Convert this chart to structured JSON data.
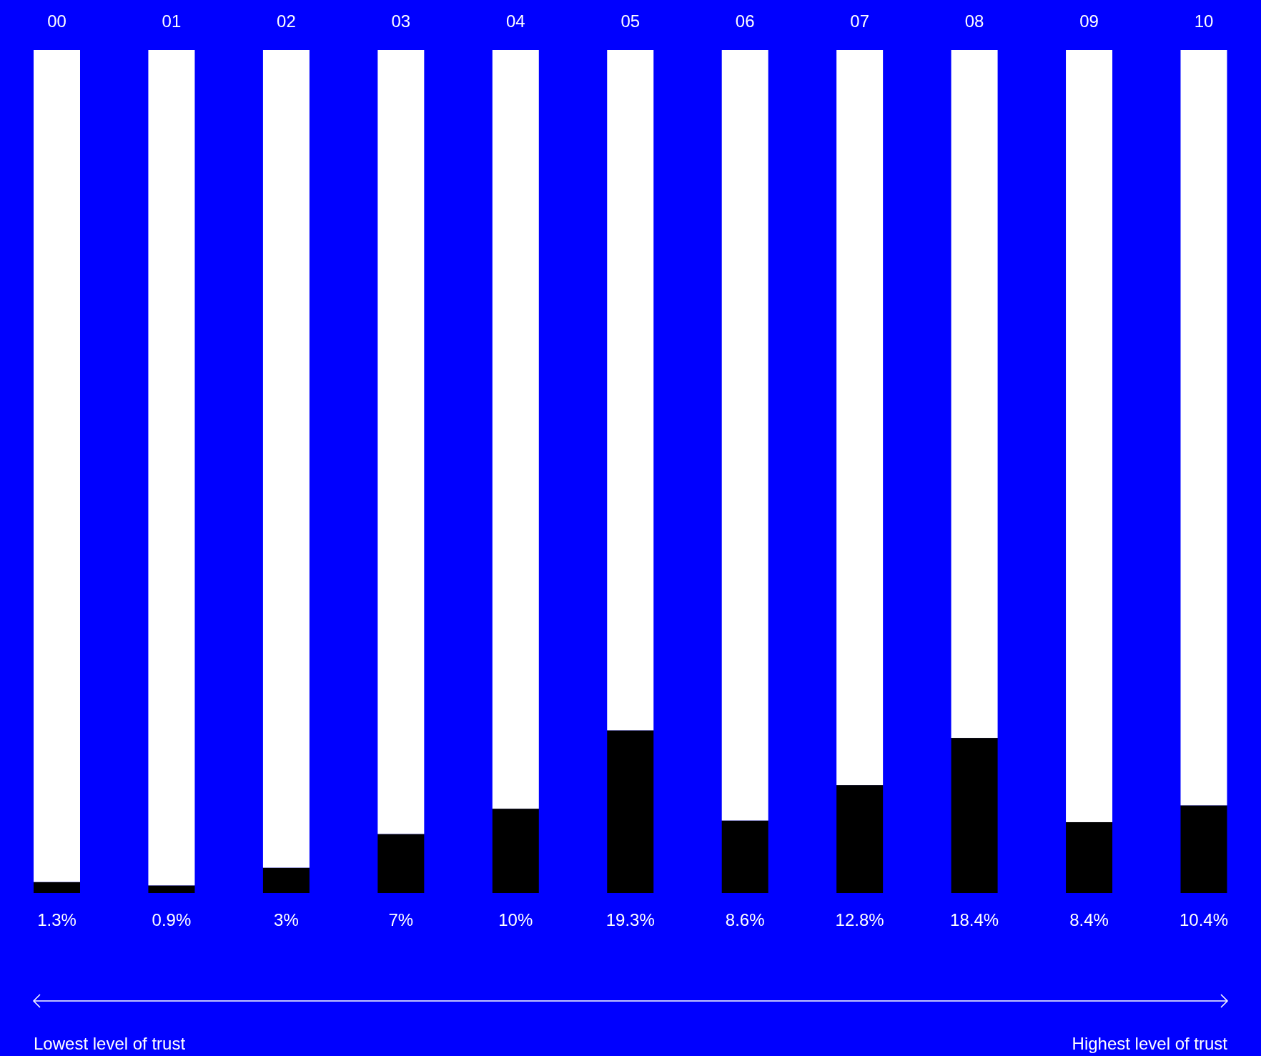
{
  "chart_data": {
    "type": "bar",
    "stacked": true,
    "tick_labels": "x",
    "categories": [
      "00",
      "01",
      "02",
      "03",
      "04",
      "05",
      "06",
      "07",
      "08",
      "09",
      "10"
    ],
    "series": [
      {
        "color": "#000000",
        "values": [
          1.3,
          0.9,
          3,
          7,
          10,
          19.3,
          8.6,
          12.8,
          18.4,
          8.4,
          10.4
        ],
        "value_labels": [
          "1.3%",
          "0.9%",
          "3%",
          "7%",
          "10%",
          "19.3%",
          "8.6%",
          "12.8%",
          "18.4%",
          "8.4%",
          "10.4%"
        ]
      },
      {
        "color": "#ffffff",
        "values": [
          98.7,
          99.1,
          97,
          93,
          90,
          80.7,
          91.4,
          87.2,
          81.6,
          91.6,
          89.6
        ]
      }
    ],
    "annotations": [
      "Lowest level of trust",
      "Highest level of trust"
    ]
  }
}
